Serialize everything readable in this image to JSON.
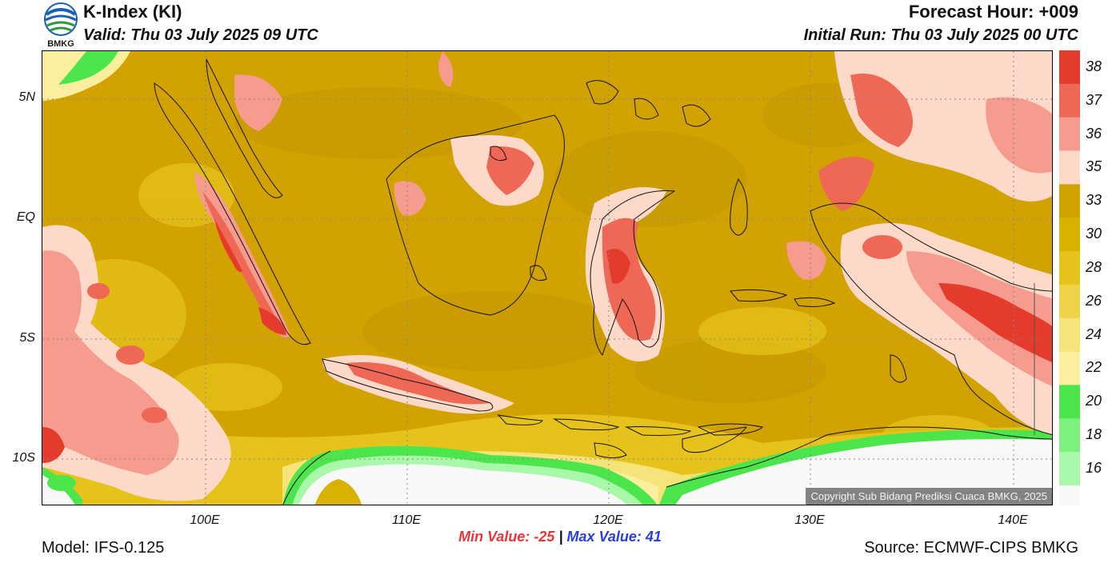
{
  "header": {
    "logo_text": "BMKG",
    "title": "K-Index (KI)",
    "valid": "Valid: Thu 03 July 2025 09 UTC",
    "forecast_hour": "Forecast Hour: +009",
    "initial_run": "Initial Run: Thu 03 July 2025 00 UTC"
  },
  "map": {
    "lat_labels": [
      "5N",
      "EQ",
      "5S",
      "10S"
    ],
    "lon_labels": [
      "100E",
      "110E",
      "120E",
      "130E",
      "140E"
    ],
    "copyright": "Copyright Sub Bidang Prediksi Cuaca BMKG, 2025"
  },
  "colorbar": {
    "labels": [
      "38",
      "37",
      "36",
      "35",
      "33",
      "30",
      "28",
      "26",
      "24",
      "22",
      "20",
      "18",
      "16"
    ],
    "colors": [
      "#e43b2c",
      "#ef6755",
      "#f59c8e",
      "#fcd9c9",
      "#d1a200",
      "#d9b100",
      "#e6c31a",
      "#efd44a",
      "#f6e37a",
      "#fbee9f",
      "#4ce64c",
      "#7ef07e",
      "#a9f7a9"
    ]
  },
  "footer": {
    "min_label": "Min Value: -25",
    "separator": "|",
    "max_label": "Max Value:  41",
    "model": "Model: IFS-0.125",
    "source": "Source: ECMWF-CIPS BMKG"
  }
}
